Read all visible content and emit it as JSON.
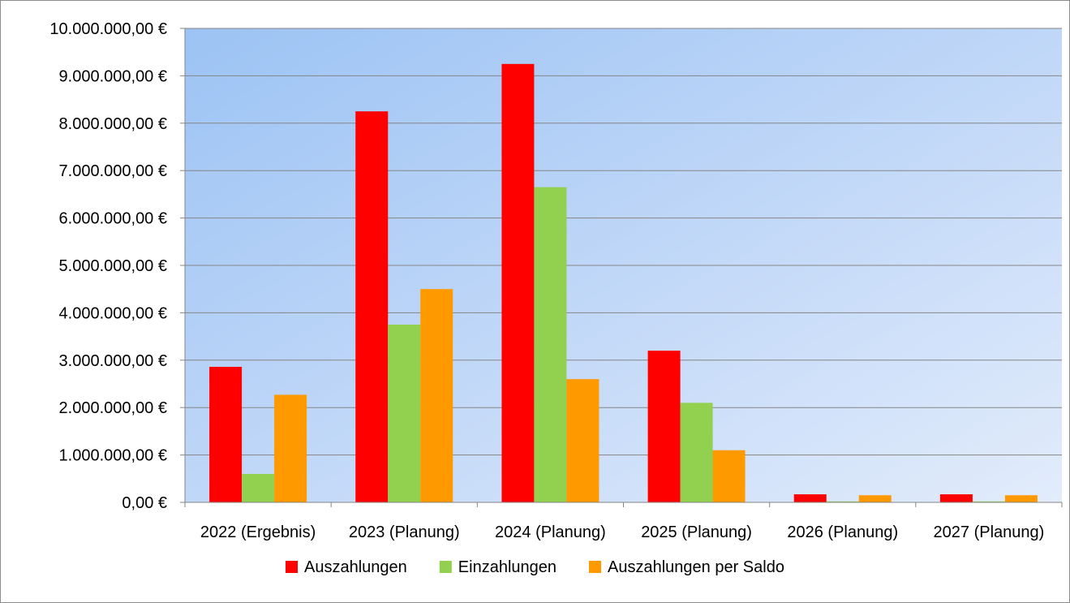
{
  "chart_data": {
    "type": "bar",
    "title": "",
    "xlabel": "",
    "ylabel": "",
    "categories": [
      "2022 (Ergebnis)",
      "2023 (Planung)",
      "2024 (Planung)",
      "2025 (Planung)",
      "2026 (Planung)",
      "2027 (Planung)"
    ],
    "series": [
      {
        "name": "Auszahlungen",
        "color": "#ff0000",
        "values": [
          2860000,
          8250000,
          9250000,
          3200000,
          170000,
          170000
        ]
      },
      {
        "name": "Einzahlungen",
        "color": "#92d050",
        "values": [
          600000,
          3750000,
          6650000,
          2100000,
          20000,
          20000
        ]
      },
      {
        "name": "Auszahlungen per Saldo",
        "color": "#ff9900",
        "values": [
          2270000,
          4500000,
          2600000,
          1100000,
          150000,
          150000
        ]
      }
    ],
    "ylim": [
      0,
      10000000
    ],
    "y_ticks": [
      0,
      1000000,
      2000000,
      3000000,
      4000000,
      5000000,
      6000000,
      7000000,
      8000000,
      9000000,
      10000000
    ],
    "y_tick_labels": [
      "0,00 €",
      "1.000.000,00 €",
      "2.000.000,00 €",
      "3.000.000,00 €",
      "4.000.000,00 €",
      "5.000.000,00 €",
      "6.000.000,00 €",
      "7.000.000,00 €",
      "8.000.000,00 €",
      "9.000.000,00 €",
      "10.000.000,00 €"
    ],
    "grid": true,
    "legend_position": "bottom",
    "plot_background": "gradient light blue"
  }
}
